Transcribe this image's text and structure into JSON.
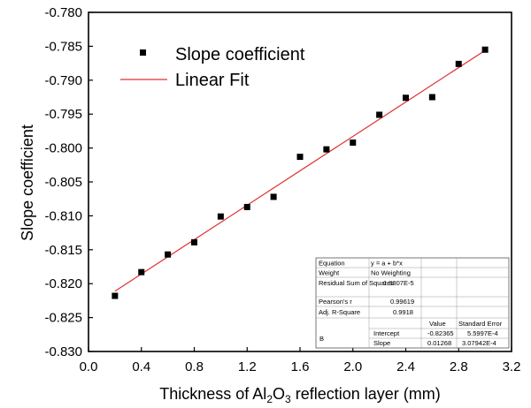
{
  "chart_data": {
    "type": "scatter",
    "xlabel_parts": {
      "prefix": "Thickness of Al",
      "sub1": "2",
      "mid": "O",
      "sub2": "3",
      "suffix": " reflection layer (mm)"
    },
    "ylabel": "Slope coefficient",
    "xlim": [
      0.0,
      3.2
    ],
    "ylim": [
      -0.83,
      -0.78
    ],
    "x_ticks": [
      "0.0",
      "0.4",
      "0.8",
      "1.2",
      "1.6",
      "2.0",
      "2.4",
      "2.8",
      "3.2"
    ],
    "y_ticks": [
      "-0.780",
      "-0.785",
      "-0.790",
      "-0.795",
      "-0.800",
      "-0.805",
      "-0.810",
      "-0.815",
      "-0.820",
      "-0.825",
      "-0.830"
    ],
    "grid": false,
    "legend_position": "top-left",
    "series": [
      {
        "name": "Slope coefficient",
        "kind": "scatter",
        "color": "#000000",
        "marker": "square",
        "x": [
          0.2,
          0.4,
          0.6,
          0.8,
          1.0,
          1.2,
          1.4,
          1.6,
          1.8,
          2.0,
          2.2,
          2.4,
          2.6,
          2.8,
          3.0
        ],
        "y": [
          -0.8218,
          -0.8183,
          -0.8157,
          -0.8139,
          -0.8101,
          -0.8087,
          -0.8072,
          -0.8013,
          -0.8002,
          -0.7992,
          -0.7951,
          -0.7926,
          -0.7925,
          -0.7876,
          -0.7855
        ]
      },
      {
        "name": "Linear Fit",
        "kind": "line",
        "color": "#e03030",
        "intercept": -0.82365,
        "slope": 0.01268,
        "x_range": [
          0.2,
          3.0
        ]
      }
    ],
    "fit_table": {
      "rows": [
        {
          "label": "Equation",
          "value": "y = a + b*x"
        },
        {
          "label": "Weight",
          "value": "No Weighting"
        },
        {
          "label": "Residual Sum of Squares",
          "value": "1.3807E-5"
        },
        {
          "label": "Pearson's r",
          "value": "0.99619"
        },
        {
          "label": "Adj. R-Square",
          "value": "0.9918"
        }
      ],
      "header": {
        "value": "Value",
        "error": "Standard Error"
      },
      "group_label": "B",
      "params": [
        {
          "name": "Intercept",
          "value": "-0.82365",
          "error": "5.5997E-4"
        },
        {
          "name": "Slope",
          "value": "0.01268",
          "error": "3.07942E-4"
        }
      ]
    }
  }
}
